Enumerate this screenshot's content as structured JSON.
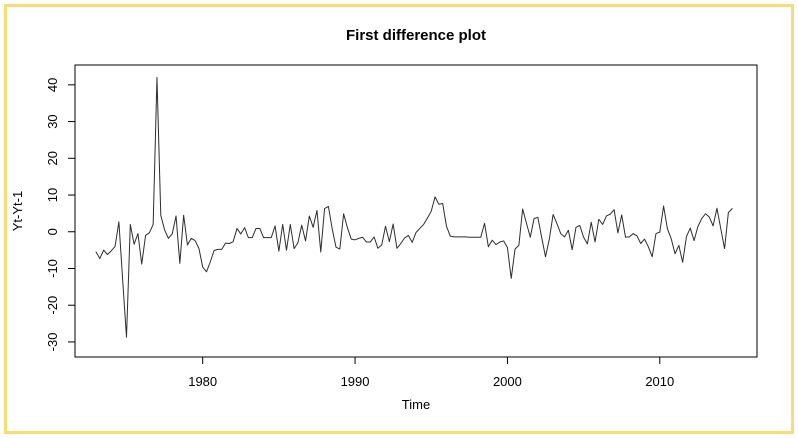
{
  "window": {
    "border_color": "#f8dc75",
    "background_color": "#ffffff"
  },
  "chart_data": {
    "type": "line",
    "title": "First difference plot",
    "xlabel": "Time",
    "ylabel": "Yt-Yt-1",
    "legend": "none",
    "grid": "off",
    "line_color": "#2d2d2d",
    "x_ticks": [
      "1980",
      "1990",
      "2000",
      "2010"
    ],
    "x_tick_years": [
      1980,
      1990,
      2000,
      2010
    ],
    "y_ticks": [
      "-30",
      "-20",
      "-10",
      "0",
      "10",
      "20",
      "30",
      "40"
    ],
    "y_tick_values": [
      -30,
      -20,
      -10,
      0,
      10,
      20,
      30,
      40
    ],
    "xlim": [
      1971.62,
      2016.38
    ],
    "ylim": [
      -34.1,
      45.4
    ],
    "series_start_year": 1973,
    "points_per_year": 4,
    "x_range_data": [
      1973.0,
      2014.75
    ],
    "values": [
      -5.5,
      -7.3,
      -5.0,
      -6.2,
      -5.2,
      -4.0,
      2.7,
      -13.2,
      -28.7,
      2.0,
      -3.4,
      -0.5,
      -8.8,
      -1.0,
      -0.3,
      2.0,
      42.0,
      4.5,
      0.5,
      -1.8,
      -0.6,
      4.3,
      -8.6,
      4.5,
      -3.6,
      -1.8,
      -2.4,
      -4.5,
      -9.6,
      -10.9,
      -8.2,
      -5.1,
      -4.8,
      -4.8,
      -3.1,
      -3.2,
      -2.7,
      0.9,
      -0.6,
      1.1,
      -1.6,
      -1.6,
      0.9,
      0.9,
      -1.6,
      -1.6,
      -1.6,
      1.6,
      -5.3,
      2.0,
      -5.0,
      2.0,
      -4.6,
      -3.0,
      1.8,
      -2.5,
      4.3,
      1.2,
      5.8,
      -5.5,
      6.3,
      6.9,
      0.8,
      -4.2,
      -4.7,
      4.9,
      1.1,
      -2.0,
      -2.2,
      -1.8,
      -1.5,
      -2.8,
      -2.8,
      -1.4,
      -4.5,
      -3.6,
      1.5,
      -2.7,
      2.1,
      -4.5,
      -3.2,
      -1.7,
      -1.0,
      -2.9,
      -0.2,
      0.9,
      2.0,
      3.7,
      5.6,
      9.5,
      7.5,
      7.7,
      1.5,
      -1.2,
      -1.4,
      -1.4,
      -1.4,
      -1.4,
      -1.5,
      -1.5,
      -1.5,
      -1.5,
      2.3,
      -4.1,
      -2.3,
      -3.5,
      -2.8,
      -2.5,
      -4.3,
      -12.7,
      -4.7,
      -3.7,
      6.2,
      2.3,
      -1.5,
      3.6,
      3.9,
      -1.6,
      -6.8,
      -2.0,
      4.7,
      2.2,
      -0.5,
      -1.4,
      0.4,
      -4.9,
      1.2,
      1.7,
      -1.5,
      -3.3,
      2.6,
      -2.8,
      3.4,
      2.0,
      4.3,
      4.8,
      6.0,
      -0.3,
      4.6,
      -1.5,
      -1.4,
      -0.5,
      -1.1,
      -3.2,
      -2.0,
      -4.1,
      -6.8,
      -0.5,
      -0.1,
      7.0,
      0.8,
      -1.9,
      -6.0,
      -3.7,
      -8.3,
      -1.3,
      1.0,
      -2.4,
      1.4,
      3.6,
      4.9,
      4.0,
      1.6,
      6.4,
      0.9,
      -4.6,
      5.2,
      6.3
    ]
  }
}
